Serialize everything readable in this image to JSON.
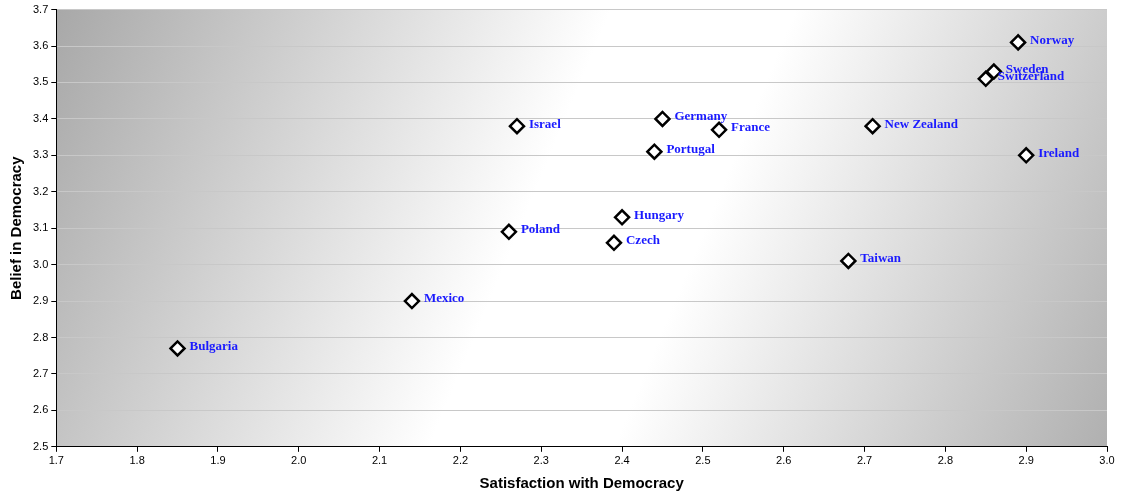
{
  "chart_data": {
    "type": "scatter",
    "xlabel": "Satisfaction with Democracy",
    "ylabel": "Belief in Democracy",
    "x": [
      1.85,
      2.14,
      2.26,
      2.27,
      2.39,
      2.4,
      2.44,
      2.45,
      2.52,
      2.68,
      2.71,
      2.85,
      2.86,
      2.89,
      2.9
    ],
    "series": [
      {
        "color": "#000000",
        "values": [
          2.77,
          2.9,
          3.09,
          3.38,
          3.06,
          3.13,
          3.31,
          3.4,
          3.37,
          3.01,
          3.38,
          3.51,
          3.53,
          3.61,
          3.3
        ]
      }
    ],
    "marker": "diamond",
    "grid": "y",
    "legend": false,
    "xlim": [
      1.7,
      3.0
    ],
    "xticks": [
      1.7,
      1.8,
      1.9,
      {
        "value": 2,
        "label": "2.0"
      },
      2.1,
      2.2,
      2.3,
      2.4,
      2.5,
      2.6,
      2.7,
      2.8,
      2.9,
      {
        "value": 3,
        "label": "3.0"
      }
    ],
    "ylim": [
      2.5,
      3.7
    ],
    "yticks": [
      2.5,
      2.6,
      2.7,
      2.8,
      2.9,
      {
        "value": 3,
        "label": "3.0"
      },
      3.1,
      3.2,
      3.3,
      3.4,
      3.5,
      3.6,
      3.7
    ],
    "annotations": [
      {
        "text": "Bulgaria",
        "x": 1.85,
        "y": 2.77
      },
      {
        "text": "Mexico",
        "x": 2.14,
        "y": 2.9
      },
      {
        "text": "Poland",
        "x": 2.26,
        "y": 3.09
      },
      {
        "text": "Israel",
        "x": 2.27,
        "y": 3.38
      },
      {
        "text": "Czech",
        "x": 2.39,
        "y": 3.06
      },
      {
        "text": "Hungary",
        "x": 2.4,
        "y": 3.13
      },
      {
        "text": "Portugal",
        "x": 2.44,
        "y": 3.31
      },
      {
        "text": "Germany",
        "x": 2.45,
        "y": 3.4
      },
      {
        "text": "France",
        "x": 2.52,
        "y": 3.37
      },
      {
        "text": "Taiwan",
        "x": 2.68,
        "y": 3.01
      },
      {
        "text": "New Zealand",
        "x": 2.71,
        "y": 3.38
      },
      {
        "text": "Switzerland",
        "x": 2.85,
        "y": 3.51
      },
      {
        "text": "Sweden",
        "x": 2.86,
        "y": 3.53
      },
      {
        "text": "Norway",
        "x": 2.89,
        "y": 3.61
      },
      {
        "text": "Ireland",
        "x": 2.9,
        "y": 3.3
      }
    ]
  }
}
